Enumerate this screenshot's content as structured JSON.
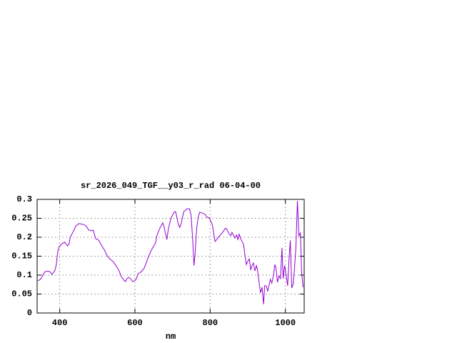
{
  "chart_data": {
    "type": "line",
    "title": "sr_2026_049_TGF__y03_r_rad 06-04-00",
    "x_label": "nm",
    "x": [
      342,
      349,
      360,
      368,
      375,
      379,
      387,
      391,
      394,
      398,
      406,
      413,
      421,
      425,
      428,
      436,
      443,
      451,
      462,
      470,
      477,
      485,
      489,
      492,
      496,
      504,
      511,
      519,
      526,
      534,
      542,
      549,
      557,
      564,
      572,
      575,
      579,
      583,
      587,
      594,
      602,
      609,
      617,
      625,
      632,
      640,
      647,
      655,
      658,
      666,
      674,
      677,
      681,
      685,
      689,
      696,
      704,
      708,
      711,
      715,
      719,
      723,
      726,
      730,
      738,
      745,
      749,
      753,
      757,
      760,
      764,
      768,
      772,
      779,
      787,
      791,
      798,
      806,
      813,
      821,
      825,
      832,
      840,
      843,
      851,
      855,
      858,
      866,
      870,
      874,
      877,
      881,
      889,
      892,
      896,
      900,
      904,
      908,
      911,
      915,
      919,
      923,
      926,
      930,
      934,
      938,
      942,
      945,
      949,
      953,
      957,
      960,
      964,
      968,
      972,
      975,
      979,
      983,
      987,
      991,
      994,
      998,
      1002,
      1006,
      1009,
      1013,
      1017,
      1021,
      1025,
      1028,
      1032,
      1036,
      1040,
      1043,
      1047
    ],
    "series": [
      {
        "color": "#9400d3",
        "values": [
          0.085,
          0.089,
          0.108,
          0.111,
          0.108,
          0.102,
          0.111,
          0.128,
          0.157,
          0.174,
          0.183,
          0.187,
          0.177,
          0.183,
          0.2,
          0.215,
          0.23,
          0.236,
          0.234,
          0.23,
          0.219,
          0.217,
          0.219,
          0.209,
          0.196,
          0.192,
          0.179,
          0.166,
          0.151,
          0.142,
          0.136,
          0.126,
          0.113,
          0.096,
          0.085,
          0.083,
          0.091,
          0.094,
          0.092,
          0.083,
          0.087,
          0.104,
          0.109,
          0.119,
          0.138,
          0.158,
          0.172,
          0.185,
          0.204,
          0.223,
          0.238,
          0.23,
          0.211,
          0.194,
          0.223,
          0.251,
          0.266,
          0.268,
          0.255,
          0.236,
          0.226,
          0.236,
          0.251,
          0.268,
          0.275,
          0.275,
          0.26,
          0.204,
          0.125,
          0.157,
          0.223,
          0.251,
          0.266,
          0.264,
          0.26,
          0.253,
          0.251,
          0.232,
          0.189,
          0.198,
          0.204,
          0.211,
          0.223,
          0.223,
          0.208,
          0.204,
          0.213,
          0.198,
          0.206,
          0.194,
          0.209,
          0.196,
          0.181,
          0.157,
          0.128,
          0.136,
          0.143,
          0.113,
          0.125,
          0.132,
          0.111,
          0.125,
          0.113,
          0.081,
          0.053,
          0.068,
          0.023,
          0.072,
          0.072,
          0.058,
          0.075,
          0.089,
          0.079,
          0.098,
          0.128,
          0.119,
          0.081,
          0.098,
          0.091,
          0.172,
          0.091,
          0.125,
          0.1,
          0.072,
          0.128,
          0.192,
          0.066,
          0.077,
          0.128,
          0.175,
          0.296,
          0.204,
          0.211,
          0.109,
          0.068
        ]
      }
    ],
    "xlim": [
      340,
      1050
    ],
    "xticks": [
      400,
      600,
      800,
      1000
    ],
    "ylim": [
      0,
      0.3
    ],
    "yticks": [
      0,
      0.05,
      0.1,
      0.15,
      0.2,
      0.25,
      0.3
    ],
    "grid": true
  }
}
